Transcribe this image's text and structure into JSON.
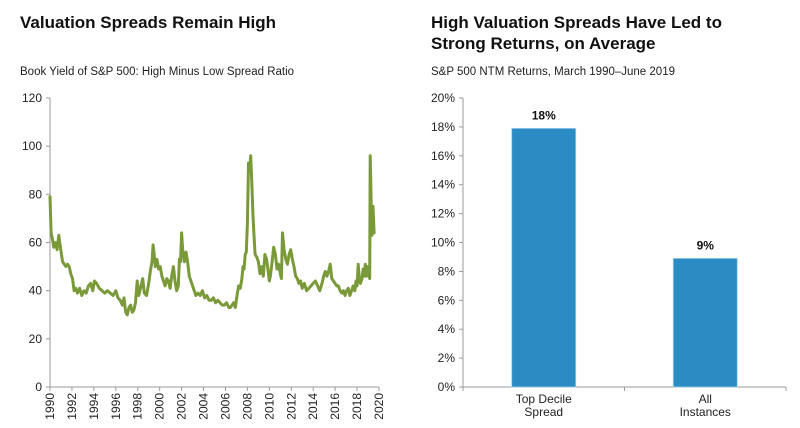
{
  "colors": {
    "line": "#7a9a3a",
    "bar": "#2b8bc3",
    "axis": "#9a9a9a"
  },
  "chart_data": [
    {
      "type": "line",
      "title": "Valuation Spreads Remain High",
      "subtitle": "Book Yield of S&P 500: High Minus Low Spread Ratio",
      "xlabel": "",
      "ylabel": "",
      "xlim": [
        1990,
        2020
      ],
      "ylim": [
        0,
        120
      ],
      "yticks": [
        "0",
        "20",
        "40",
        "60",
        "80",
        "100",
        "120"
      ],
      "xticks": [
        "1990",
        "1992",
        "1994",
        "1996",
        "1998",
        "2000",
        "2002",
        "2004",
        "2006",
        "2008",
        "2010",
        "2012",
        "2014",
        "2016",
        "2018",
        "2020"
      ],
      "grid": false,
      "series": [
        {
          "name": "High Minus Low Spread Ratio",
          "x": [
            1990.0,
            1990.1,
            1990.2,
            1990.35,
            1990.5,
            1990.65,
            1990.8,
            1990.95,
            1991.05,
            1991.15,
            1991.3,
            1991.45,
            1991.6,
            1991.75,
            1991.9,
            1992.05,
            1992.2,
            1992.35,
            1992.5,
            1992.7,
            1992.9,
            1993.1,
            1993.3,
            1993.5,
            1993.7,
            1993.9,
            1994.05,
            1994.25,
            1994.5,
            1994.75,
            1995.0,
            1995.25,
            1995.5,
            1995.75,
            1996.0,
            1996.2,
            1996.4,
            1996.6,
            1996.75,
            1996.9,
            1997.05,
            1997.2,
            1997.35,
            1997.5,
            1997.65,
            1997.8,
            1997.95,
            1998.1,
            1998.3,
            1998.45,
            1998.6,
            1998.8,
            1999.0,
            1999.15,
            1999.3,
            1999.4,
            1999.5,
            1999.6,
            1999.75,
            1999.9,
            2000.05,
            2000.2,
            2000.35,
            2000.5,
            2000.65,
            2000.8,
            2000.95,
            2001.1,
            2001.25,
            2001.4,
            2001.55,
            2001.7,
            2001.8,
            2001.9,
            2002.0,
            2002.1,
            2002.25,
            2002.4,
            2002.55,
            2002.7,
            2002.85,
            2003.0,
            2003.15,
            2003.3,
            2003.5,
            2003.7,
            2003.9,
            2004.1,
            2004.3,
            2004.5,
            2004.7,
            2004.9,
            2005.1,
            2005.3,
            2005.5,
            2005.7,
            2005.9,
            2006.1,
            2006.3,
            2006.45,
            2006.6,
            2006.75,
            2006.9,
            2007.05,
            2007.2,
            2007.35,
            2007.5,
            2007.6,
            2007.7,
            2007.8,
            2007.9,
            2008.0,
            2008.1,
            2008.2,
            2008.3,
            2008.4,
            2008.5,
            2008.6,
            2008.7,
            2008.85,
            2009.0,
            2009.15,
            2009.3,
            2009.45,
            2009.6,
            2009.75,
            2009.9,
            2010.0,
            2010.1,
            2010.25,
            2010.4,
            2010.55,
            2010.7,
            2010.85,
            2011.0,
            2011.1,
            2011.2,
            2011.35,
            2011.5,
            2011.65,
            2011.8,
            2011.95,
            2012.1,
            2012.25,
            2012.4,
            2012.55,
            2012.7,
            2012.85,
            2013.0,
            2013.2,
            2013.4,
            2013.6,
            2013.8,
            2014.0,
            2014.2,
            2014.4,
            2014.6,
            2014.8,
            2014.95,
            2015.1,
            2015.25,
            2015.4,
            2015.55,
            2015.7,
            2015.85,
            2016.0,
            2016.15,
            2016.3,
            2016.45,
            2016.6,
            2016.75,
            2016.9,
            2017.05,
            2017.2,
            2017.35,
            2017.5,
            2017.65,
            2017.8,
            2017.9,
            2018.0,
            2018.1,
            2018.2,
            2018.3,
            2018.45,
            2018.55,
            2018.65,
            2018.75,
            2018.85,
            2018.95,
            2019.05,
            2019.15,
            2019.2,
            2019.25,
            2019.3,
            2019.35,
            2019.45,
            2019.55
          ],
          "y": [
            79,
            64,
            62,
            58,
            60,
            57,
            63,
            58,
            55,
            52,
            51,
            50,
            51,
            50,
            47,
            45,
            40,
            41,
            39,
            41,
            38,
            40,
            39,
            42,
            43,
            40,
            44,
            43,
            41,
            40,
            39,
            40,
            39,
            38,
            40,
            37,
            36,
            34,
            37,
            31,
            30,
            33,
            34,
            31,
            32,
            35,
            44,
            38,
            42,
            45,
            39,
            38,
            43,
            48,
            52,
            59,
            55,
            50,
            53,
            49,
            50,
            46,
            44,
            42,
            45,
            44,
            41,
            46,
            50,
            44,
            40,
            42,
            53,
            52,
            64,
            57,
            52,
            56,
            52,
            46,
            44,
            42,
            40,
            38,
            39,
            38,
            40,
            37,
            38,
            36,
            36,
            37,
            35,
            36,
            35,
            34,
            34,
            35,
            33,
            33,
            34,
            35,
            33,
            38,
            42,
            41,
            45,
            50,
            49,
            55,
            56,
            68,
            93,
            90,
            96,
            85,
            72,
            63,
            55,
            54,
            52,
            47,
            50,
            46,
            55,
            53,
            48,
            44,
            46,
            52,
            58,
            55,
            49,
            51,
            47,
            45,
            64,
            57,
            53,
            51,
            55,
            57,
            53,
            50,
            46,
            45,
            43,
            44,
            41,
            43,
            40,
            41,
            42,
            43,
            44,
            42,
            40,
            43,
            46,
            48,
            46,
            48,
            51,
            45,
            44,
            43,
            42,
            42,
            40,
            39,
            40,
            38,
            40,
            41,
            38,
            40,
            42,
            40,
            44,
            42,
            51,
            45,
            43,
            45,
            49,
            46,
            51,
            46,
            50,
            47,
            45,
            96,
            85,
            72,
            63,
            75,
            64
          ]
        }
      ]
    },
    {
      "type": "bar",
      "title": "High Valuation Spreads Have Led to Strong Returns, on Average",
      "subtitle": "S&P 500 NTM Returns, March 1990–June 2019",
      "xlabel": "",
      "ylabel": "",
      "ylim": [
        0,
        20
      ],
      "yticks": [
        "0%",
        "2%",
        "4%",
        "6%",
        "8%",
        "10%",
        "12%",
        "14%",
        "16%",
        "18%",
        "20%"
      ],
      "grid": false,
      "categories": [
        [
          "Top Decile",
          "Spread"
        ],
        [
          "All",
          "Instances"
        ]
      ],
      "values": [
        17.9,
        8.9
      ],
      "data_labels": [
        "18%",
        "9%"
      ]
    }
  ]
}
